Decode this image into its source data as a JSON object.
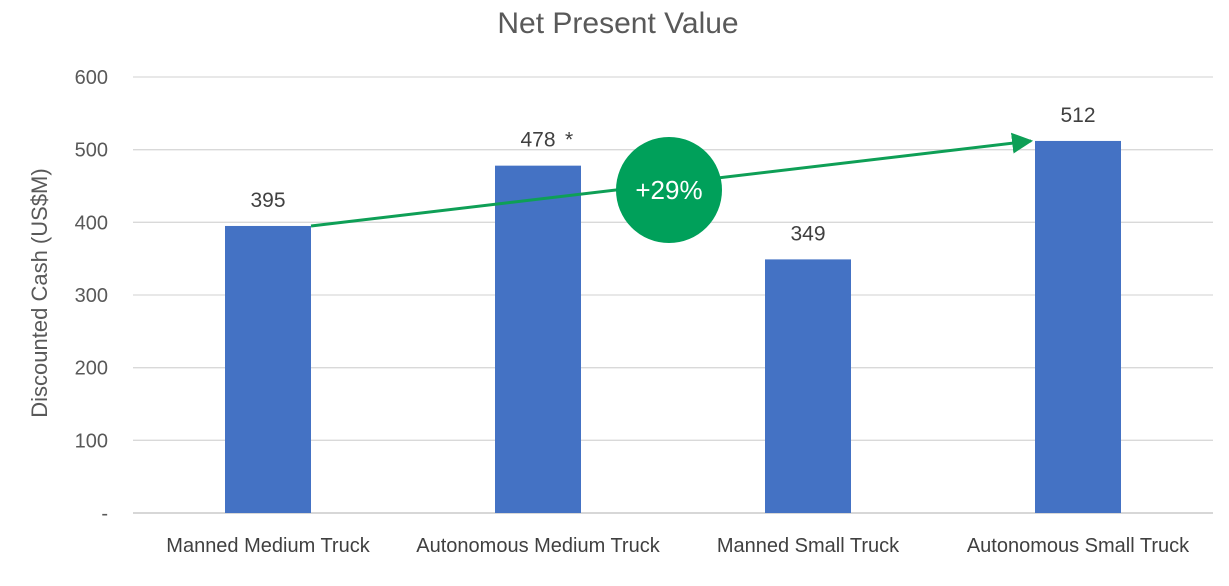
{
  "chart_data": {
    "type": "bar",
    "title": "Net Present Value",
    "xlabel": "",
    "ylabel": "Discounted Cash (US$M)",
    "categories": [
      "Manned Medium Truck",
      "Autonomous Medium Truck",
      "Manned Small Truck",
      "Autonomous Small Truck"
    ],
    "values": [
      395,
      478,
      349,
      512
    ],
    "data_labels": [
      "395",
      "478",
      "349",
      "512"
    ],
    "label_suffixes": [
      "",
      "*",
      "",
      ""
    ],
    "ylim": [
      0,
      600
    ],
    "y_ticks": [
      0,
      100,
      200,
      300,
      400,
      500,
      600
    ],
    "y_tick_labels": [
      "-",
      "100",
      "200",
      "300",
      "400",
      "500",
      "600"
    ],
    "grid": true,
    "legend": "none",
    "annotation": {
      "text": "+29%",
      "from_category": "Manned Medium Truck",
      "to_category": "Autonomous Small Truck",
      "from_value": 395,
      "to_value": 512
    }
  },
  "colors": {
    "bar": "#4472C4",
    "arrow": "#0E9F56",
    "badge": "#00A05A",
    "grid": "#D9D9D9",
    "axis": "#BFBFBF"
  }
}
